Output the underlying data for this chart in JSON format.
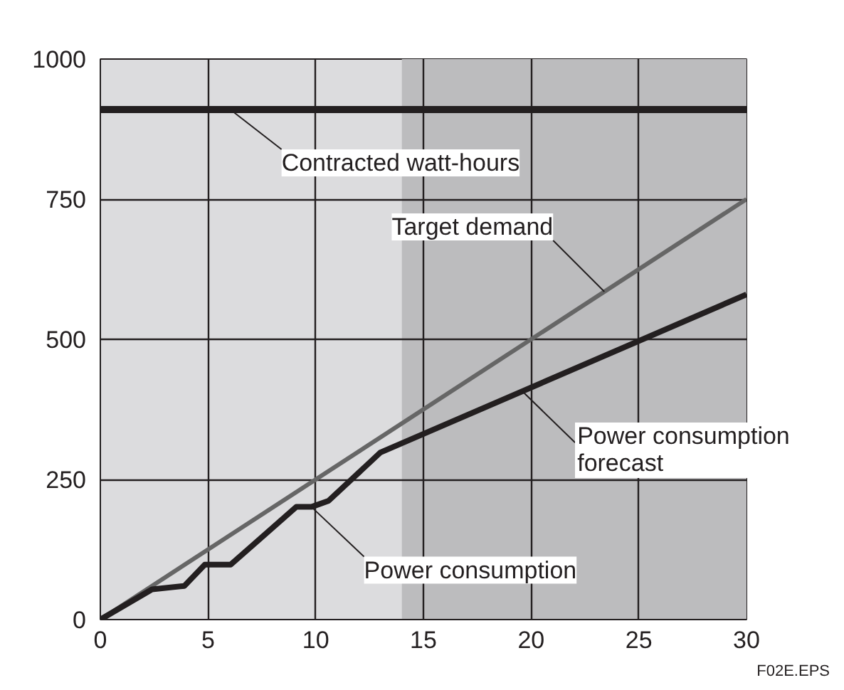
{
  "chart_data": {
    "type": "line",
    "xlim": [
      0,
      30
    ],
    "ylim": [
      0,
      1000
    ],
    "xticks": [
      0,
      5,
      10,
      15,
      20,
      25,
      30
    ],
    "yticks": [
      0,
      250,
      500,
      750,
      1000
    ],
    "grid": true,
    "series": [
      {
        "name": "Target demand",
        "color": "#666666",
        "x": [
          0,
          30
        ],
        "values": [
          0,
          750
        ]
      },
      {
        "name": "Power consumption",
        "color": "#231f20",
        "x": [
          0,
          2.4,
          3.9,
          4.85,
          6.05,
          9.1,
          9.8,
          10.6,
          13,
          30
        ],
        "values": [
          0,
          54,
          60,
          98,
          98,
          201,
          201,
          212,
          298,
          580
        ]
      }
    ],
    "ref_lines": [
      {
        "axis": "y",
        "value": 910,
        "label": "Contracted watt-hours",
        "color": "#231f20"
      }
    ],
    "bands": [
      {
        "axis": "x",
        "from": 14,
        "to": 30,
        "color": "#bcbcbe"
      }
    ],
    "annotations": [
      {
        "text": "Power consumption forecast",
        "x": 19.6,
        "y": 407
      },
      "F02E.EPS"
    ]
  }
}
